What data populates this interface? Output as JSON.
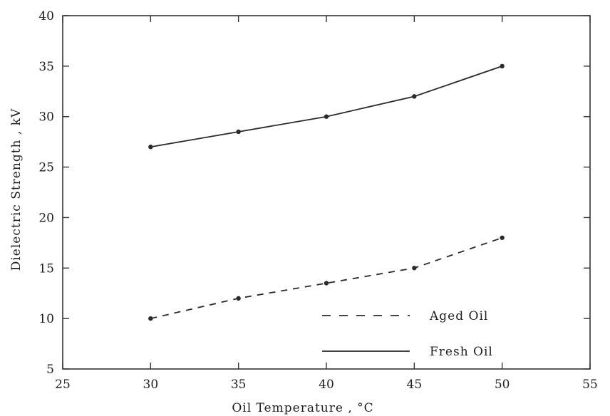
{
  "chart_data": {
    "type": "line",
    "title": "",
    "xlabel": "Oil Temperature , °C",
    "ylabel": "Dielectric Strength , kV",
    "xlim": [
      25,
      55
    ],
    "ylim": [
      5,
      40
    ],
    "xticks": [
      25,
      30,
      35,
      40,
      45,
      50,
      55
    ],
    "yticks": [
      5,
      10,
      15,
      20,
      25,
      30,
      35,
      40
    ],
    "grid": false,
    "legend_position": "bottom-right",
    "series": [
      {
        "name": "Aged Oil",
        "style": "dashed",
        "color": "#2a2a2a",
        "x": [
          30,
          35,
          40,
          45,
          50
        ],
        "y": [
          10,
          12,
          13.5,
          15,
          18
        ]
      },
      {
        "name": "Fresh Oil",
        "style": "solid",
        "color": "#2a2a2a",
        "x": [
          30,
          35,
          40,
          45,
          50
        ],
        "y": [
          27,
          28.5,
          30,
          32,
          35
        ]
      }
    ]
  }
}
